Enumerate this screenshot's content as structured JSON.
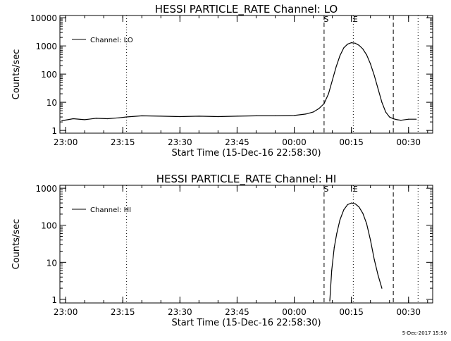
{
  "footer_timestamp": "5-Dec-2017 15:50",
  "chart_data": [
    {
      "type": "line",
      "title": "HESSI PARTICLE_RATE Channel: LO",
      "xlabel": "Start Time (15-Dec-16 22:58:30)",
      "ylabel": "Counts/sec",
      "yscale": "log",
      "xlim": [
        "22:58:30",
        "00:36:20"
      ],
      "ylim": [
        0.8,
        12000
      ],
      "x_tick_labels": [
        "23:00",
        "23:15",
        "23:30",
        "23:45",
        "00:00",
        "00:15",
        "00:30"
      ],
      "y_tick_labels": [
        "1",
        "10",
        "100",
        "1000",
        "10000"
      ],
      "legend": {
        "position": "top-left",
        "entries": [
          "Channel: LO"
        ]
      },
      "markers": [
        {
          "label": "S",
          "time": "00:07:50",
          "style": "dashed"
        },
        {
          "label": "E",
          "time": "00:15:30",
          "style": "dotted"
        },
        {
          "label": "",
          "time": "23:16:00",
          "style": "dotted"
        },
        {
          "label": "",
          "time": "00:26:00",
          "style": "dashed"
        },
        {
          "label": "",
          "time": "00:32:30",
          "style": "dotted"
        }
      ],
      "series": [
        {
          "name": "Channel: LO",
          "x": [
            "22:59:00",
            "23:02:00",
            "23:05:00",
            "23:08:00",
            "23:11:00",
            "23:14:00",
            "23:16:00",
            "23:20:00",
            "23:25:00",
            "23:30:00",
            "23:35:00",
            "23:40:00",
            "23:45:00",
            "23:50:00",
            "23:55:00",
            "00:00:00",
            "00:03:00",
            "00:05:00",
            "00:06:30",
            "00:07:50",
            "00:09:00",
            "00:10:00",
            "00:11:00",
            "00:12:00",
            "00:13:00",
            "00:14:00",
            "00:15:00",
            "00:16:00",
            "00:17:00",
            "00:18:00",
            "00:19:00",
            "00:20:00",
            "00:21:00",
            "00:22:00",
            "00:23:00",
            "00:24:00",
            "00:25:00",
            "00:26:00",
            "00:27:00",
            "00:28:00",
            "00:30:00",
            "00:32:00"
          ],
          "y": [
            2.2,
            2.6,
            2.4,
            2.7,
            2.6,
            2.8,
            3.0,
            3.3,
            3.2,
            3.1,
            3.2,
            3.1,
            3.2,
            3.3,
            3.3,
            3.4,
            3.8,
            4.5,
            6.0,
            9.0,
            20,
            60,
            180,
            450,
            850,
            1150,
            1300,
            1250,
            1050,
            780,
            480,
            230,
            90,
            30,
            10,
            4.5,
            3.0,
            2.6,
            2.4,
            2.3,
            2.5,
            2.5
          ]
        }
      ]
    },
    {
      "type": "line",
      "title": "HESSI PARTICLE_RATE Channel: HI",
      "xlabel": "Start Time (15-Dec-16 22:58:30)",
      "ylabel": "Counts/sec",
      "yscale": "log",
      "xlim": [
        "22:58:30",
        "00:36:20"
      ],
      "ylim": [
        0.8,
        1200
      ],
      "x_tick_labels": [
        "23:00",
        "23:15",
        "23:30",
        "23:45",
        "00:00",
        "00:15",
        "00:30"
      ],
      "y_tick_labels": [
        "1",
        "10",
        "100",
        "1000"
      ],
      "legend": {
        "position": "top-left",
        "entries": [
          "Channel: HI"
        ]
      },
      "markers": [
        {
          "label": "S",
          "time": "00:07:50",
          "style": "dashed"
        },
        {
          "label": "E",
          "time": "00:15:30",
          "style": "dotted"
        },
        {
          "label": "",
          "time": "23:16:00",
          "style": "dotted"
        },
        {
          "label": "",
          "time": "00:26:00",
          "style": "dashed"
        },
        {
          "label": "",
          "time": "00:32:30",
          "style": "dotted"
        }
      ],
      "series": [
        {
          "name": "Channel: HI",
          "x": [
            "00:09:20",
            "00:09:50",
            "00:10:30",
            "00:11:10",
            "00:12:00",
            "00:13:00",
            "00:14:00",
            "00:15:00",
            "00:16:00",
            "00:17:00",
            "00:18:00",
            "00:19:00",
            "00:20:00",
            "00:21:00",
            "00:22:00",
            "00:23:00"
          ],
          "y": [
            0.9,
            6,
            25,
            60,
            140,
            260,
            360,
            400,
            380,
            310,
            210,
            110,
            40,
            12,
            4.5,
            2.0
          ]
        }
      ]
    }
  ]
}
